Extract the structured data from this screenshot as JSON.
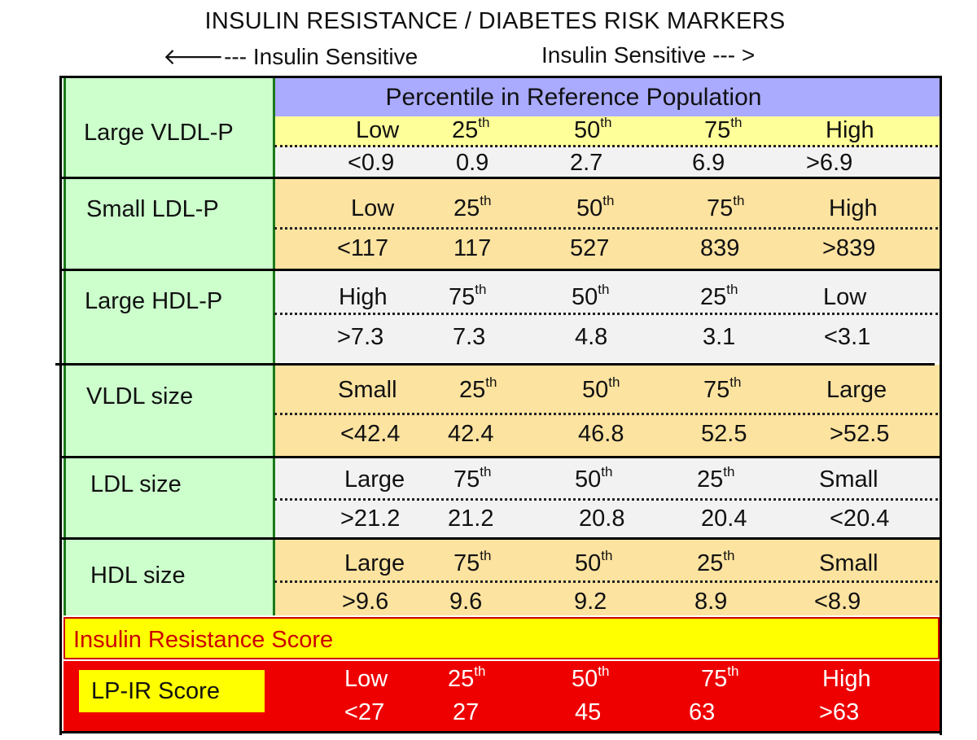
{
  "title": "INSULIN RESISTANCE  /  DIABETES RISK MARKERS",
  "direction_left": "🡐--- Insulin Sensitive",
  "direction_right": "Insulin Sensitive --- >",
  "percentile_header": "Percentile in Reference Population",
  "colors": {
    "green": "#ccffcc",
    "header": "#aaaaff",
    "light_yellow": "#ffff99",
    "tan": "#fde3a0",
    "light_gray": "#f2f2f2",
    "yellow": "#ffff00",
    "red": "#ee0000"
  },
  "rows": [
    {
      "label": "Large VLDL-P",
      "labels": [
        "Low",
        "25",
        "50",
        "75",
        "High"
      ],
      "values": [
        "<0.9",
        "0.9",
        "2.7",
        "6.9",
        ">6.9"
      ]
    },
    {
      "label": "Small LDL-P",
      "labels": [
        "Low",
        "25",
        "50",
        "75",
        "High"
      ],
      "values": [
        "<117",
        "117",
        "527",
        "839",
        ">839"
      ]
    },
    {
      "label": "Large HDL-P",
      "labels": [
        "High",
        "75",
        "50",
        "25",
        "Low"
      ],
      "values": [
        ">7.3",
        "7.3",
        "4.8",
        "3.1",
        "<3.1"
      ]
    },
    {
      "label": "VLDL size",
      "labels": [
        "Small",
        "25",
        "50",
        "75",
        "Large"
      ],
      "values": [
        "<42.4",
        "42.4",
        "46.8",
        "52.5",
        ">52.5"
      ]
    },
    {
      "label": "LDL size",
      "labels": [
        "Large",
        "75",
        "50",
        "25",
        "Small"
      ],
      "values": [
        ">21.2",
        "21.2",
        "20.8",
        "20.4",
        "<20.4"
      ]
    },
    {
      "label": "HDL size",
      "labels": [
        "Large",
        "75",
        "50",
        "25",
        "Small"
      ],
      "values": [
        ">9.6",
        "9.6",
        "9.2",
        "8.9",
        "<8.9"
      ]
    }
  ],
  "th": "th",
  "insulin_resistance_score": "Insulin Resistance Score",
  "lpir": {
    "label": "LP-IR Score",
    "labels": [
      "Low",
      "25",
      "50",
      "75",
      "High"
    ],
    "values": [
      "<27",
      "27",
      "45",
      "63",
      ">63"
    ]
  }
}
